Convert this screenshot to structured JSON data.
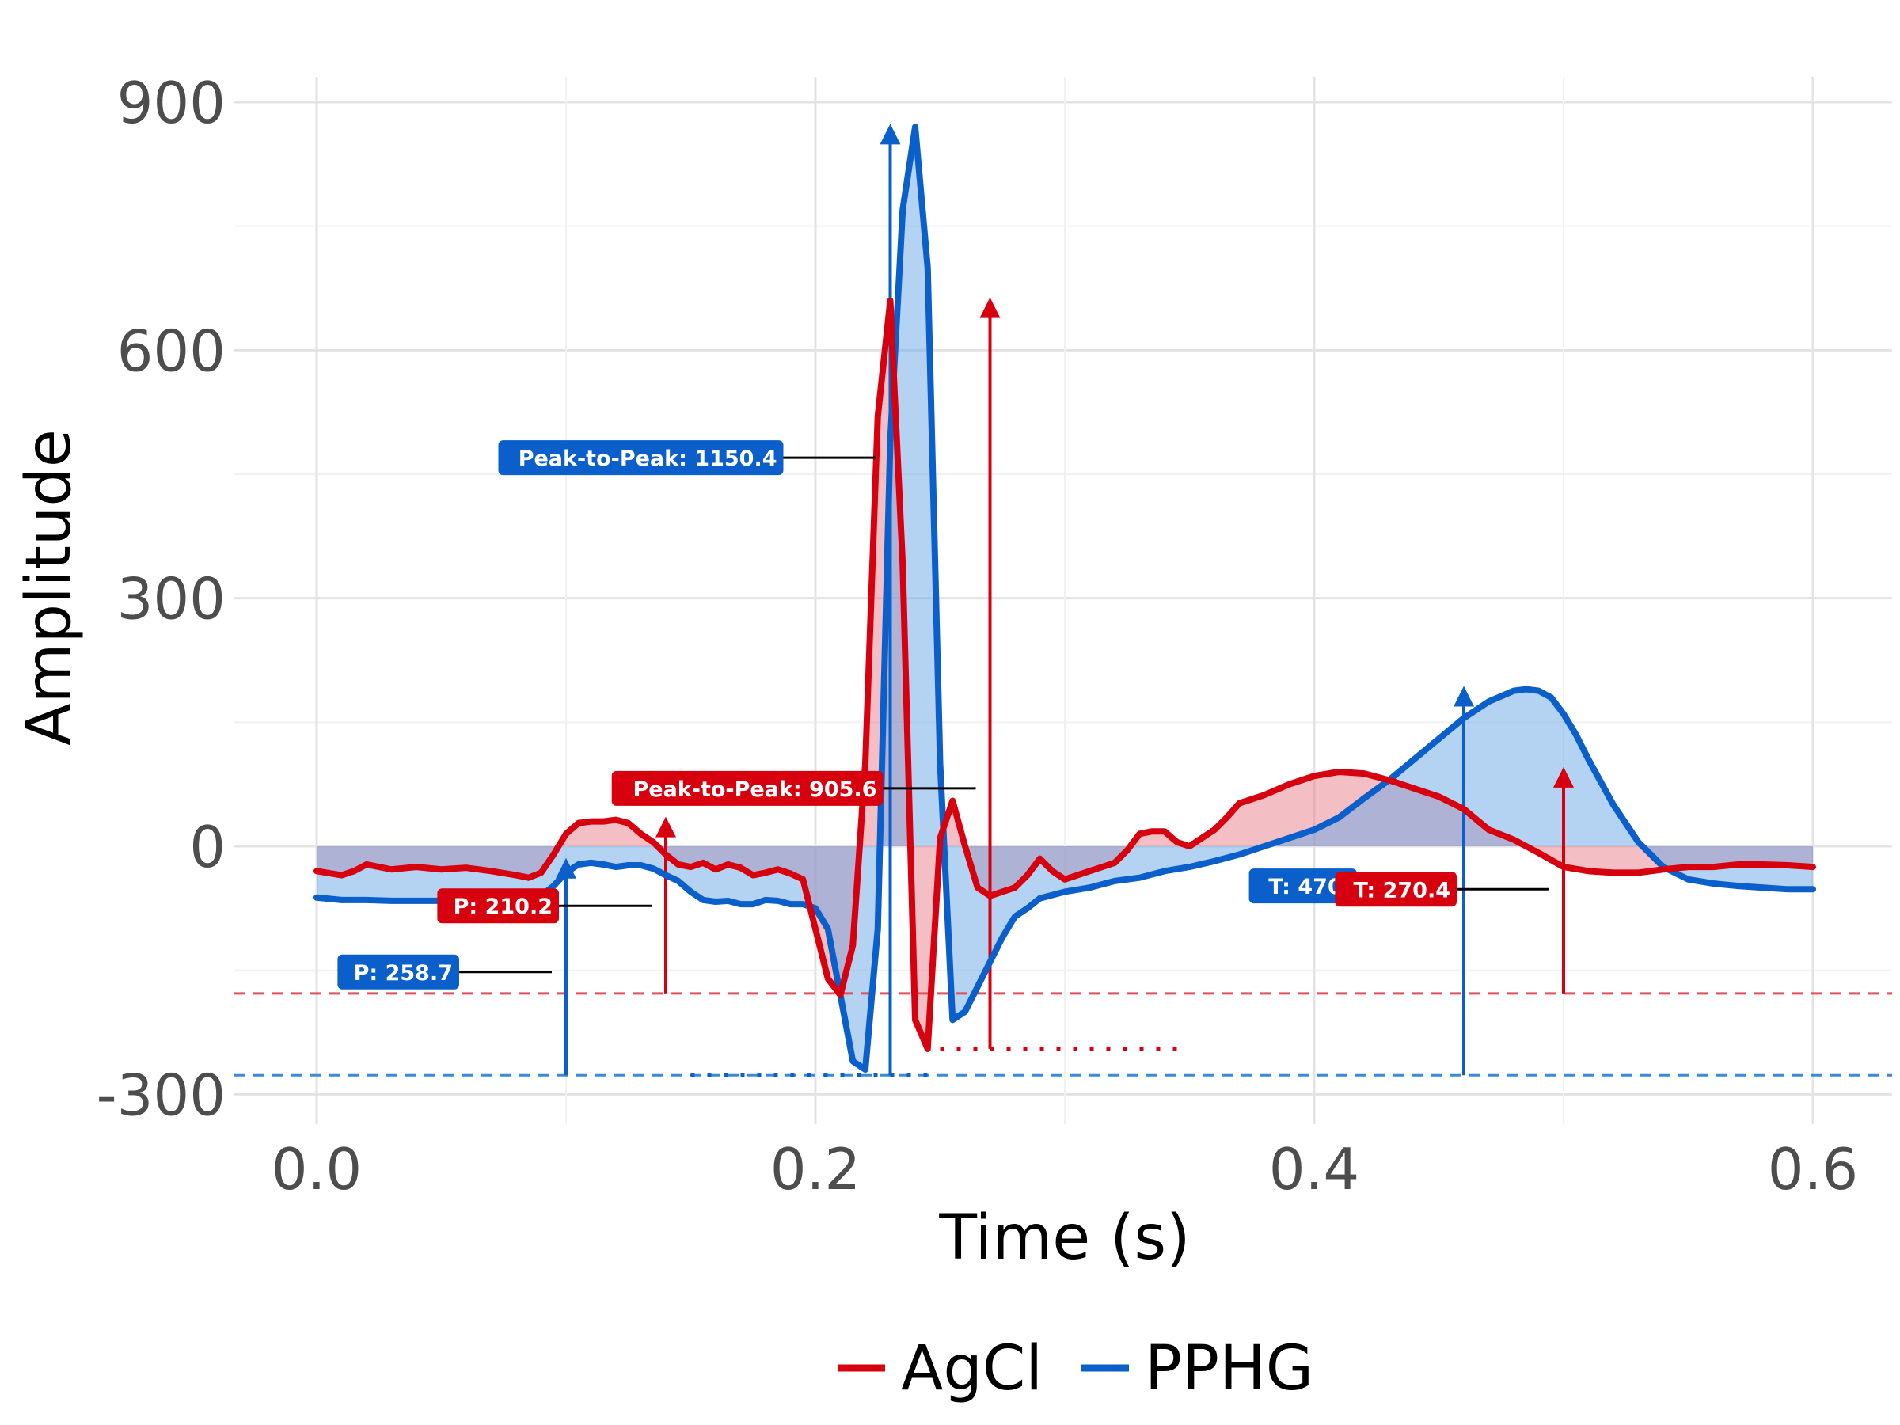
{
  "chart_data": {
    "type": "line",
    "xlabel": "Time (s)",
    "ylabel": "Amplitude",
    "xlim": [
      -0.03,
      0.63
    ],
    "ylim": [
      -330,
      930
    ],
    "x_ticks": [
      "0.0",
      "0.2",
      "0.4",
      "0.6"
    ],
    "y_ticks": [
      "-300",
      "0",
      "300",
      "600",
      "900"
    ],
    "grid": true,
    "legend_position": "bottom",
    "baseline": 0,
    "series": [
      {
        "name": "AgCl",
        "color": "#d7000f",
        "fill": "#e8808a",
        "x": [
          0.0,
          0.01,
          0.015,
          0.02,
          0.03,
          0.04,
          0.05,
          0.06,
          0.07,
          0.08,
          0.085,
          0.09,
          0.095,
          0.1,
          0.105,
          0.11,
          0.115,
          0.12,
          0.125,
          0.13,
          0.135,
          0.14,
          0.145,
          0.15,
          0.155,
          0.16,
          0.165,
          0.17,
          0.175,
          0.18,
          0.185,
          0.19,
          0.195,
          0.2,
          0.205,
          0.21,
          0.215,
          0.22,
          0.225,
          0.23,
          0.235,
          0.24,
          0.245,
          0.25,
          0.255,
          0.26,
          0.265,
          0.27,
          0.275,
          0.28,
          0.285,
          0.29,
          0.295,
          0.3,
          0.305,
          0.31,
          0.315,
          0.32,
          0.325,
          0.33,
          0.335,
          0.34,
          0.345,
          0.35,
          0.355,
          0.36,
          0.365,
          0.37,
          0.38,
          0.39,
          0.4,
          0.41,
          0.42,
          0.43,
          0.44,
          0.45,
          0.46,
          0.47,
          0.48,
          0.49,
          0.5,
          0.51,
          0.52,
          0.53,
          0.54,
          0.55,
          0.56,
          0.57,
          0.58,
          0.59,
          0.6
        ],
        "y": [
          -30,
          -35,
          -30,
          -22,
          -28,
          -25,
          -28,
          -26,
          -30,
          -35,
          -38,
          -32,
          -10,
          15,
          28,
          30,
          30,
          32,
          28,
          15,
          5,
          -10,
          -22,
          -25,
          -20,
          -28,
          -22,
          -26,
          -35,
          -32,
          -28,
          -33,
          -40,
          -100,
          -160,
          -180,
          -120,
          100,
          520,
          660,
          340,
          -210,
          -245,
          10,
          55,
          0,
          -50,
          -60,
          -55,
          -50,
          -35,
          -15,
          -30,
          -40,
          -35,
          -30,
          -25,
          -20,
          -5,
          15,
          18,
          18,
          5,
          0,
          10,
          20,
          35,
          52,
          62,
          75,
          85,
          90,
          88,
          80,
          70,
          60,
          45,
          20,
          8,
          -8,
          -25,
          -30,
          -32,
          -32,
          -28,
          -25,
          -25,
          -22,
          -22,
          -23,
          -25
        ]
      },
      {
        "name": "PPHG",
        "color": "#0a5fcb",
        "fill": "#6aa5e6",
        "x": [
          0.0,
          0.01,
          0.02,
          0.03,
          0.04,
          0.05,
          0.06,
          0.07,
          0.08,
          0.09,
          0.095,
          0.1,
          0.105,
          0.11,
          0.115,
          0.12,
          0.125,
          0.13,
          0.135,
          0.14,
          0.145,
          0.15,
          0.155,
          0.16,
          0.165,
          0.17,
          0.175,
          0.18,
          0.185,
          0.19,
          0.195,
          0.2,
          0.205,
          0.21,
          0.215,
          0.22,
          0.225,
          0.23,
          0.235,
          0.24,
          0.245,
          0.25,
          0.255,
          0.26,
          0.265,
          0.27,
          0.275,
          0.28,
          0.285,
          0.29,
          0.3,
          0.31,
          0.32,
          0.33,
          0.34,
          0.35,
          0.36,
          0.37,
          0.38,
          0.39,
          0.4,
          0.41,
          0.42,
          0.43,
          0.44,
          0.45,
          0.46,
          0.47,
          0.48,
          0.485,
          0.49,
          0.495,
          0.5,
          0.505,
          0.51,
          0.52,
          0.53,
          0.54,
          0.55,
          0.56,
          0.57,
          0.58,
          0.59,
          0.6
        ],
        "y": [
          -62,
          -65,
          -65,
          -66,
          -66,
          -66,
          -63,
          -63,
          -63,
          -60,
          -48,
          -32,
          -22,
          -20,
          -22,
          -25,
          -23,
          -23,
          -27,
          -35,
          -42,
          -55,
          -65,
          -67,
          -66,
          -70,
          -70,
          -65,
          -66,
          -70,
          -70,
          -75,
          -100,
          -180,
          -260,
          -270,
          -100,
          490,
          770,
          870,
          700,
          100,
          -210,
          -200,
          -170,
          -140,
          -110,
          -85,
          -75,
          -63,
          -55,
          -50,
          -42,
          -38,
          -30,
          -25,
          -18,
          -10,
          0,
          10,
          20,
          35,
          58,
          80,
          105,
          130,
          155,
          175,
          188,
          190,
          188,
          180,
          160,
          135,
          105,
          50,
          5,
          -25,
          -40,
          -45,
          -48,
          -50,
          -52,
          -52
        ]
      }
    ],
    "reference_lines": [
      {
        "series": "AgCl",
        "y": -178,
        "color": "#e0505a"
      },
      {
        "series": "PPHG",
        "y": -277,
        "color": "#3a8ad8"
      }
    ],
    "annotations": [
      {
        "series": "PPHG",
        "text": "Peak-to-Peak: 1150.4",
        "arrow_x": 0.23,
        "arrow_from": -277,
        "arrow_to": 870,
        "label_y": 470,
        "color": "#0a5fcb"
      },
      {
        "series": "AgCl",
        "text": "Peak-to-Peak: 905.6",
        "arrow_x": 0.27,
        "arrow_from": -245,
        "arrow_to": 660,
        "label_y": 70,
        "color": "#d7000f"
      },
      {
        "series": "AgCl",
        "text": "P: 210.2",
        "arrow_x": 0.14,
        "arrow_from": -178,
        "arrow_to": 32,
        "label_y": -72,
        "color": "#d7000f"
      },
      {
        "series": "PPHG",
        "text": "P: 258.7",
        "arrow_x": 0.1,
        "arrow_from": -277,
        "arrow_to": -18,
        "label_y": -152,
        "color": "#0a5fcb"
      },
      {
        "series": "PPHG",
        "text": "T: 470.",
        "arrow_x": 0.46,
        "arrow_from": -277,
        "arrow_to": 190,
        "label_y": -48,
        "color": "#0a5fcb"
      },
      {
        "series": "AgCl",
        "text": "T: 270.4",
        "arrow_x": 0.5,
        "arrow_from": -178,
        "arrow_to": 92,
        "label_y": -52,
        "color": "#d7000f"
      }
    ],
    "interval_markers": [
      {
        "series": "AgCl",
        "x_start": 0.25,
        "x_end": 0.35,
        "y": -245,
        "color": "#d7000f"
      },
      {
        "series": "PPHG",
        "x_start": 0.15,
        "x_end": 0.25,
        "y": -277,
        "color": "#0a5fcb"
      }
    ]
  }
}
